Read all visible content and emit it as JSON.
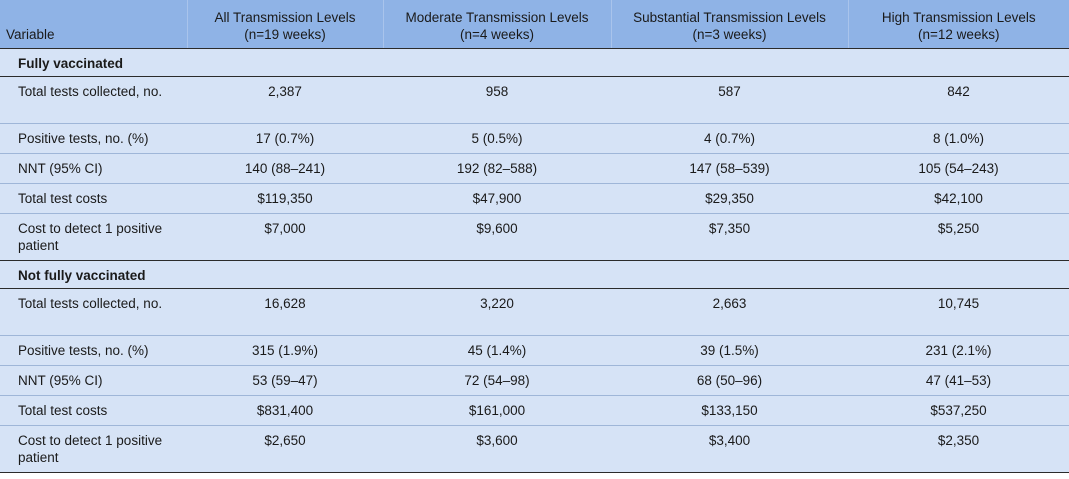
{
  "header": {
    "variable": "Variable",
    "columns": [
      {
        "line1": "All Transmission Levels",
        "line2": "(n=19 weeks)"
      },
      {
        "line1": "Moderate Transmission Levels",
        "line2": "(n=4 weeks)"
      },
      {
        "line1": "Substantial Transmission Levels",
        "line2": "(n=3 weeks)"
      },
      {
        "line1": "High Transmission Levels",
        "line2": "(n=12 weeks)"
      }
    ]
  },
  "sections": [
    {
      "title": "Fully vaccinated",
      "rows": [
        {
          "label": "Total tests collected, no.",
          "values": [
            "2,387",
            "958",
            "587",
            "842"
          ]
        },
        {
          "label": "Positive tests, no. (%)",
          "values": [
            "17 (0.7%)",
            "5 (0.5%)",
            "4 (0.7%)",
            "8 (1.0%)"
          ]
        },
        {
          "label": "NNT (95% CI)",
          "values": [
            "140 (88–241)",
            "192 (82–588)",
            "147 (58–539)",
            "105 (54–243)"
          ]
        },
        {
          "label": "Total test costs",
          "values": [
            "$119,350",
            "$47,900",
            "$29,350",
            "$42,100"
          ]
        },
        {
          "label": "Cost to detect 1 positive patient",
          "values": [
            "$7,000",
            "$9,600",
            "$7,350",
            "$5,250"
          ]
        }
      ]
    },
    {
      "title": "Not fully vaccinated",
      "rows": [
        {
          "label": "Total tests collected, no.",
          "values": [
            "16,628",
            "3,220",
            "2,663",
            "10,745"
          ]
        },
        {
          "label": "Positive tests, no. (%)",
          "values": [
            "315 (1.9%)",
            "45 (1.4%)",
            "39 (1.5%)",
            "231 (2.1%)"
          ]
        },
        {
          "label": "NNT (95% CI)",
          "values": [
            "53 (59–47)",
            "72 (54–98)",
            "68 (50–96)",
            "47 (41–53)"
          ]
        },
        {
          "label": "Total test costs",
          "values": [
            "$831,400",
            "$161,000",
            "$133,150",
            "$537,250"
          ]
        },
        {
          "label": "Cost to detect 1 positive patient",
          "values": [
            "$2,650",
            "$3,600",
            "$3,400",
            "$2,350"
          ]
        }
      ]
    }
  ]
}
